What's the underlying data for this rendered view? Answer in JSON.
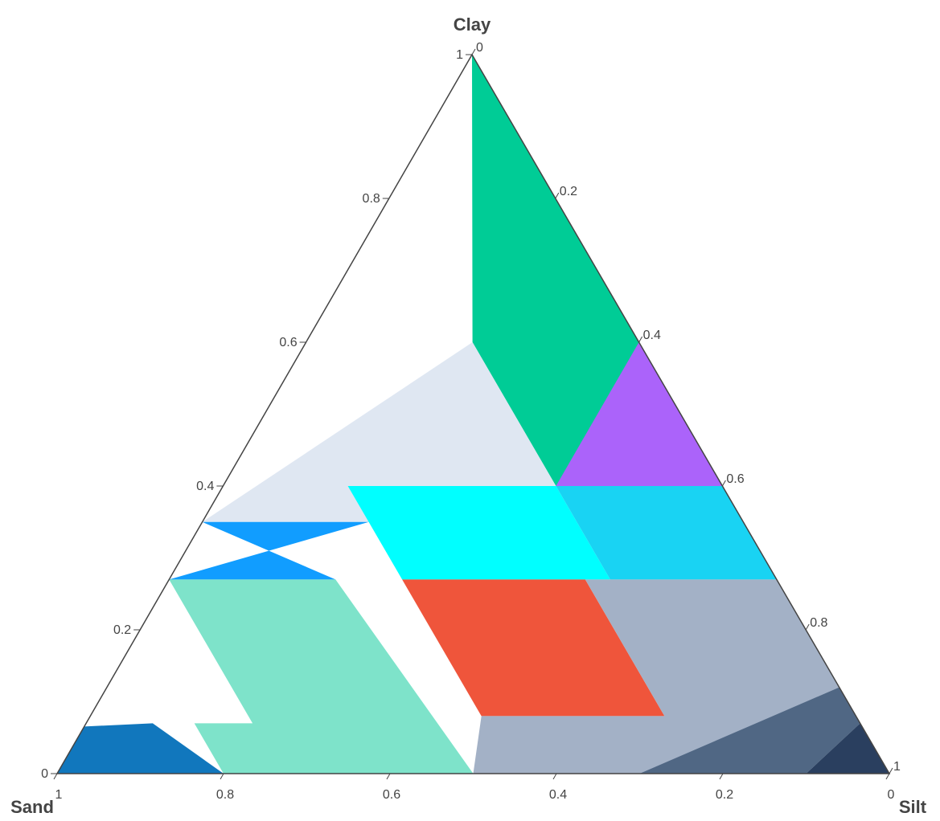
{
  "chart_data": {
    "type": "ternary",
    "axes": {
      "a": {
        "title": "Clay",
        "ticks": [
          0,
          0.2,
          0.4,
          0.6,
          0.8,
          1
        ]
      },
      "b": {
        "title": "Sand",
        "ticks": [
          0,
          0.2,
          0.4,
          0.6,
          0.8,
          1
        ]
      },
      "c": {
        "title": "Silt",
        "ticks": [
          0,
          0.2,
          0.4,
          0.6,
          0.8,
          1
        ]
      }
    },
    "tick_labels": [
      "0",
      "0.2",
      "0.4",
      "0.6",
      "0.8",
      "1"
    ],
    "regions": [
      {
        "id": "clay",
        "color": "#00cc96",
        "points": [
          [
            1,
            0,
            0
          ],
          [
            0.6,
            0.2,
            0.2
          ],
          [
            0.4,
            0.2,
            0.4
          ],
          [
            0.4,
            0,
            0.6
          ],
          [
            0.55,
            0,
            0.45
          ]
        ]
      },
      {
        "id": "sandy-clay",
        "color": "#dfe7f2",
        "points": [
          [
            0.6,
            0.2,
            0.2
          ],
          [
            0.35,
            0.65,
            0
          ],
          [
            0.35,
            0.45,
            0.2
          ],
          [
            0.4,
            0.2,
            0.4
          ]
        ]
      },
      {
        "id": "silty-clay",
        "color": "#ab63fa",
        "points": [
          [
            0.6,
            0,
            0.4
          ],
          [
            0.4,
            0,
            0.6
          ],
          [
            0.4,
            0.2,
            0.4
          ]
        ]
      },
      {
        "id": "sandy-clay-loam",
        "color": "#119dff",
        "points": [
          [
            0.35,
            0.45,
            0.2
          ],
          [
            0.35,
            0.65,
            0
          ],
          [
            0.27,
            0.53,
            0.2
          ],
          [
            0.27,
            0.73,
            0
          ]
        ]
      },
      {
        "id": "clay-loam",
        "color": "#00ffff",
        "points": [
          [
            0.4,
            0.45,
            0.15
          ],
          [
            0.4,
            0.2,
            0.4
          ],
          [
            0.27,
            0.2,
            0.53
          ],
          [
            0.27,
            0.45,
            0.28
          ]
        ]
      },
      {
        "id": "silty-clay-loam",
        "color": "#19d3f3",
        "points": [
          [
            0.4,
            0.2,
            0.4
          ],
          [
            0.4,
            0,
            0.6
          ],
          [
            0.27,
            0,
            0.73
          ],
          [
            0.27,
            0.2,
            0.53
          ]
        ]
      },
      {
        "id": "sandy-loam",
        "color": "#7ee3ca",
        "points": [
          [
            0.27,
            0.73,
            0
          ],
          [
            0.27,
            0.53,
            0.2
          ],
          [
            0,
            0.5,
            0.5
          ],
          [
            0,
            0.8,
            0.2
          ],
          [
            0.07,
            0.8,
            0.13
          ],
          [
            0.07,
            0.73,
            0.2
          ]
        ]
      },
      {
        "id": "loam",
        "color": "#ef553b",
        "points": [
          [
            0.27,
            0.45,
            0.28
          ],
          [
            0.27,
            0.23,
            0.5
          ],
          [
            0.08,
            0.23,
            0.69
          ],
          [
            0.08,
            0.45,
            0.47
          ]
        ]
      },
      {
        "id": "silt-loam",
        "color": "#a3b1c6",
        "points": [
          [
            0.27,
            0.23,
            0.5
          ],
          [
            0.27,
            0,
            0.73
          ],
          [
            0.12,
            0,
            0.88
          ],
          [
            0,
            0.2,
            0.8
          ],
          [
            0,
            0.5,
            0.5
          ],
          [
            0.08,
            0.45,
            0.47
          ],
          [
            0.08,
            0.23,
            0.69
          ]
        ]
      },
      {
        "id": "silt",
        "color": "#506784",
        "points": [
          [
            0.12,
            0,
            0.88
          ],
          [
            0.07,
            0,
            0.93
          ],
          [
            0,
            0.1,
            0.9
          ],
          [
            0,
            0.3,
            0.7
          ]
        ]
      },
      {
        "id": "silt-pure",
        "color": "#2a3f5f",
        "points": [
          [
            0.07,
            0,
            0.93
          ],
          [
            0,
            0,
            1
          ],
          [
            0,
            0.1,
            0.9
          ]
        ]
      },
      {
        "id": "loamy-sand",
        "color": "#1177bd",
        "points": [
          [
            0.07,
            1,
            0
          ],
          [
            0.07,
            0.85,
            0.08
          ],
          [
            0,
            0.8,
            0.2
          ],
          [
            0,
            1,
            0
          ]
        ]
      }
    ]
  },
  "colors": {
    "axis_line": "#444444",
    "background": "#ffffff"
  }
}
